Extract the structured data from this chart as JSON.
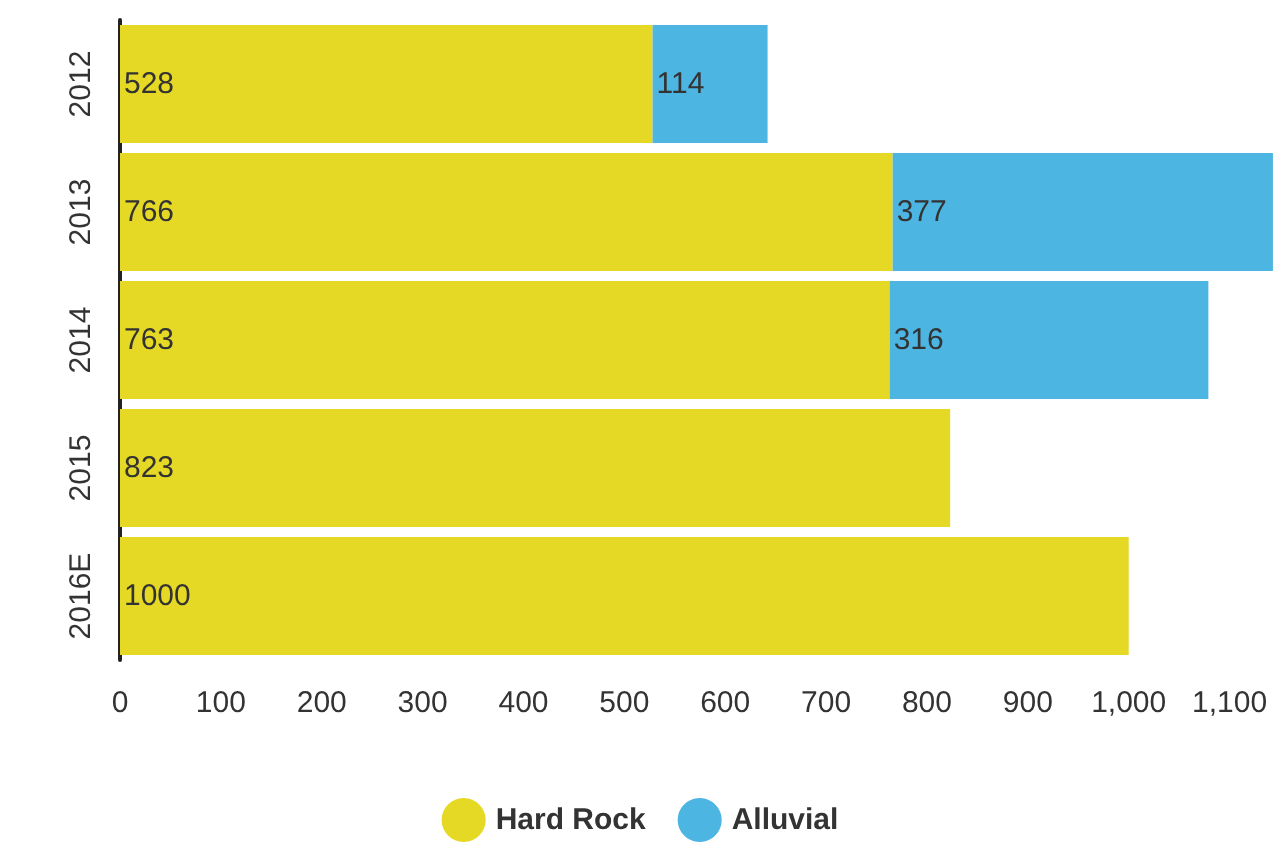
{
  "chart_data": {
    "type": "bar",
    "orientation": "horizontal",
    "stacked": true,
    "categories": [
      "2012",
      "2013",
      "2014",
      "2015",
      "2016E"
    ],
    "series": [
      {
        "name": "Hard Rock",
        "color": "#e6d925",
        "values": [
          528,
          766,
          763,
          823,
          1000
        ]
      },
      {
        "name": "Alluvial",
        "color": "#4db5e2",
        "values": [
          114,
          377,
          316,
          null,
          null
        ]
      }
    ],
    "xlim": [
      0,
      1150
    ],
    "xticks": [
      0,
      100,
      200,
      300,
      400,
      500,
      600,
      700,
      800,
      900,
      {
        "value": 1000,
        "label": "1,000"
      },
      {
        "value": 1100,
        "label": "1,100"
      }
    ],
    "data_labels": true,
    "grid": false,
    "legend": "bottom"
  }
}
